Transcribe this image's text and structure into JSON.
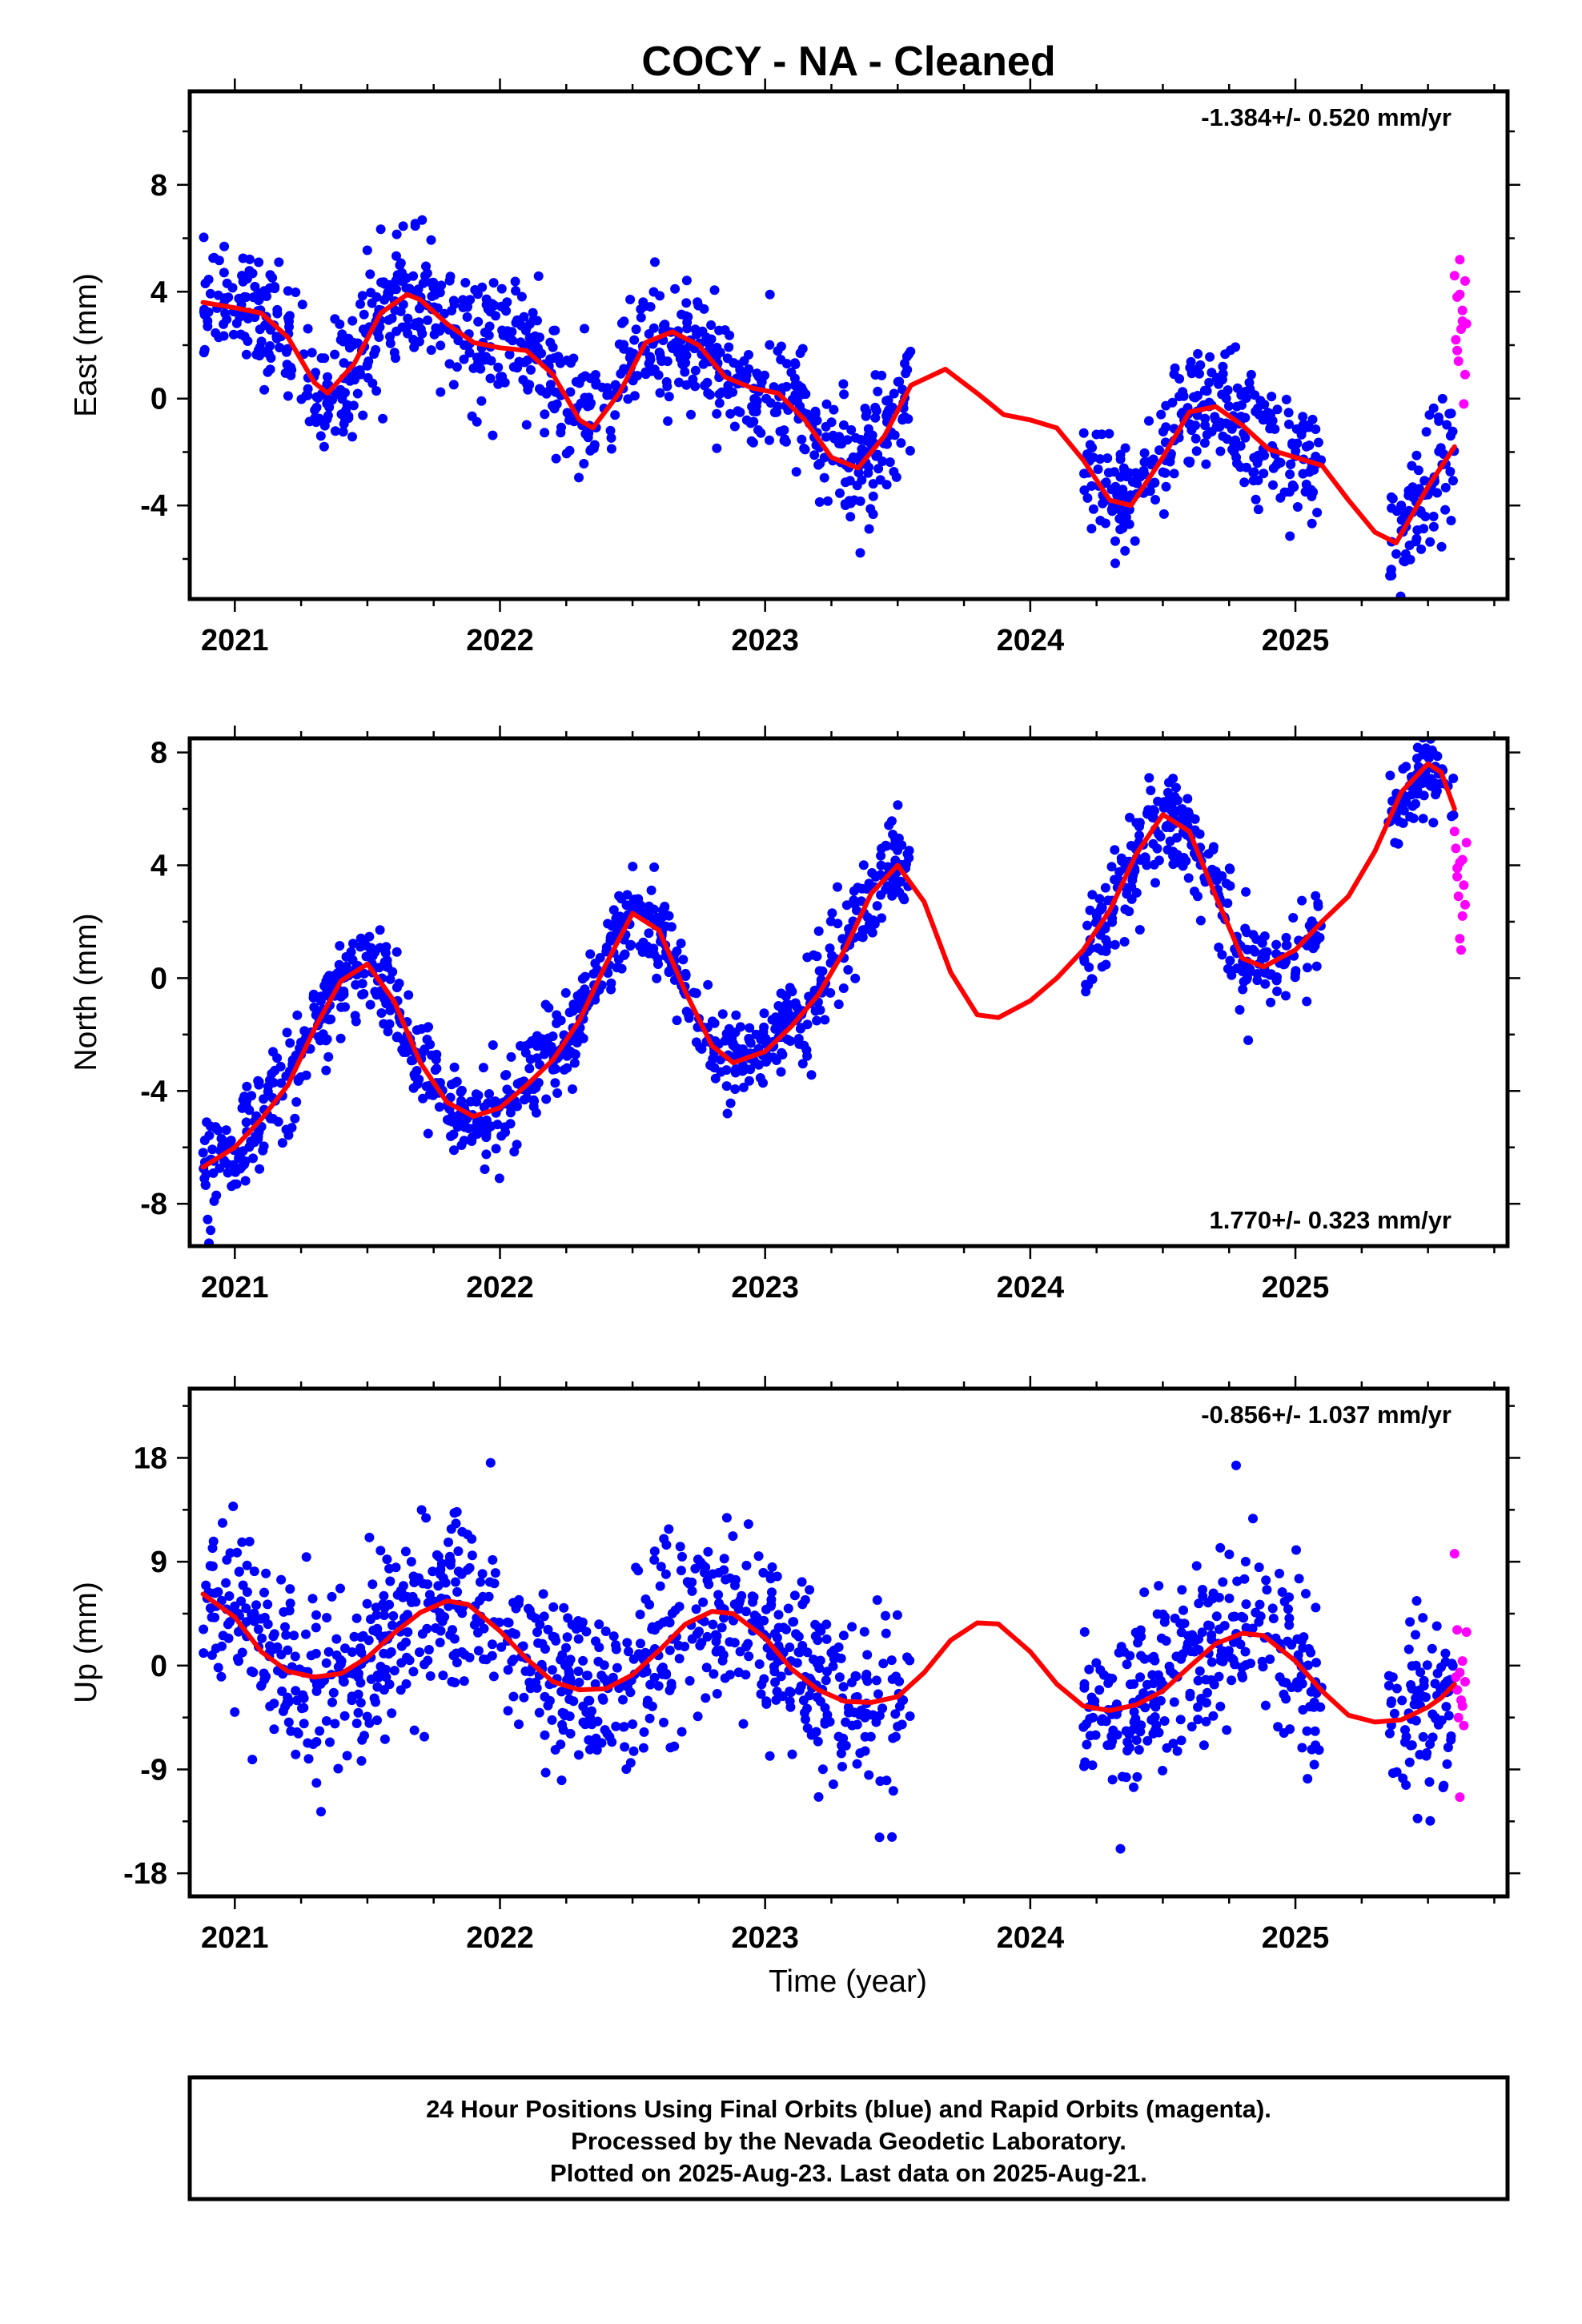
{
  "title": "COCY  - NA - Cleaned",
  "xlabel": "Time (year)",
  "footer": {
    "line1": "24 Hour Positions Using Final Orbits (blue) and Rapid Orbits (magenta).",
    "line2": "Processed by the Nevada Geodetic Laboratory.",
    "line3": "Plotted on 2025-Aug-23. Last data on 2025-Aug-21."
  },
  "colors": {
    "final": "#0000ff",
    "rapid": "#ff00ff",
    "fit": "#ff0000"
  },
  "chart_data": [
    {
      "type": "scatter",
      "name": "east",
      "ylabel": "East (mm)",
      "rate_text": "-1.384+/- 0.520 mm/yr",
      "xlim": [
        2020.83,
        2025.8
      ],
      "ylim": [
        -7.5,
        11.5
      ],
      "xticks": [
        2021,
        2022,
        2023,
        2024,
        2025
      ],
      "yticks": [
        -4,
        0,
        4,
        8
      ],
      "grid": false,
      "fit": {
        "x": [
          2020.88,
          2021.0,
          2021.1,
          2021.2,
          2021.3,
          2021.35,
          2021.45,
          2021.55,
          2021.65,
          2021.7,
          2021.8,
          2021.9,
          2022.0,
          2022.1,
          2022.2,
          2022.3,
          2022.35,
          2022.45,
          2022.55,
          2022.65,
          2022.75,
          2022.85,
          2022.95,
          2023.05,
          2023.15,
          2023.25,
          2023.35,
          2023.45,
          2023.55,
          2023.68,
          2023.8,
          2023.9,
          2024.0,
          2024.1,
          2024.2,
          2024.3,
          2024.38,
          2024.5,
          2024.6,
          2024.7,
          2024.8,
          2024.9,
          2025.0,
          2025.1,
          2025.2,
          2025.3,
          2025.38,
          2025.5,
          2025.6
        ],
        "y": [
          3.6,
          3.4,
          3.2,
          2.3,
          0.6,
          0.2,
          1.3,
          3.2,
          3.9,
          3.7,
          2.8,
          2.1,
          1.9,
          1.8,
          0.9,
          -0.8,
          -1.1,
          0.2,
          2.1,
          2.5,
          2.0,
          0.8,
          0.4,
          0.2,
          -0.8,
          -2.2,
          -2.6,
          -1.4,
          0.5,
          1.1,
          0.2,
          -0.6,
          -0.8,
          -1.1,
          -2.3,
          -3.8,
          -4.0,
          -2.2,
          -0.5,
          -0.3,
          -1.0,
          -1.9,
          -2.2,
          -2.5,
          -3.8,
          -5.0,
          -5.4,
          -3.3,
          -1.8
        ]
      },
      "final_segments": [
        [
          2020.88,
          2021.55
        ],
        [
          2021.55,
          2022.25
        ],
        [
          2022.25,
          2022.9
        ],
        [
          2022.9,
          2023.55
        ],
        [
          2024.2,
          2025.1
        ],
        [
          2025.35,
          2025.6
        ]
      ],
      "final_scatter_sd": 1.15,
      "rapid_points": {
        "x": [
          2025.6,
          2025.605,
          2025.61,
          2025.615,
          2025.62,
          2025.625,
          2025.63,
          2025.635,
          2025.64,
          2025.645,
          2025.61,
          2025.62,
          2025.63,
          2025.64
        ],
        "y": [
          4.6,
          2.2,
          3.8,
          1.4,
          5.2,
          2.6,
          3.3,
          -0.2,
          4.4,
          2.8,
          1.8,
          3.9,
          2.9,
          0.9
        ]
      }
    },
    {
      "type": "scatter",
      "name": "north",
      "ylabel": "North (mm)",
      "rate_text": "1.770+/- 0.323 mm/yr",
      "xlim": [
        2020.83,
        2025.8
      ],
      "ylim": [
        -9.5,
        8.5
      ],
      "xticks": [
        2021,
        2022,
        2023,
        2024,
        2025
      ],
      "yticks": [
        -8,
        -4,
        0,
        4,
        8
      ],
      "grid": false,
      "fit": {
        "x": [
          2020.88,
          2021.0,
          2021.1,
          2021.2,
          2021.3,
          2021.4,
          2021.5,
          2021.6,
          2021.7,
          2021.8,
          2021.9,
          2022.0,
          2022.1,
          2022.2,
          2022.3,
          2022.4,
          2022.5,
          2022.6,
          2022.7,
          2022.8,
          2022.88,
          2023.0,
          2023.1,
          2023.2,
          2023.3,
          2023.4,
          2023.5,
          2023.6,
          2023.7,
          2023.8,
          2023.88,
          2024.0,
          2024.1,
          2024.2,
          2024.3,
          2024.4,
          2024.5,
          2024.6,
          2024.7,
          2024.8,
          2024.88,
          2025.0,
          2025.1,
          2025.2,
          2025.3,
          2025.4,
          2025.5,
          2025.55,
          2025.6
        ],
        "y": [
          -6.7,
          -6.0,
          -5.0,
          -3.8,
          -1.8,
          -0.1,
          0.5,
          -0.8,
          -3.0,
          -4.4,
          -4.9,
          -4.6,
          -3.8,
          -2.9,
          -1.5,
          0.5,
          2.3,
          1.7,
          -0.5,
          -2.4,
          -3.0,
          -2.6,
          -1.7,
          -0.6,
          1.0,
          3.0,
          4.0,
          2.7,
          0.2,
          -1.3,
          -1.4,
          -0.8,
          0.0,
          1.0,
          2.4,
          4.4,
          5.8,
          5.2,
          2.9,
          0.7,
          0.4,
          1.0,
          2.0,
          2.9,
          4.5,
          6.6,
          7.6,
          7.3,
          6.0
        ]
      },
      "final_segments": [
        [
          2020.88,
          2021.55
        ],
        [
          2021.55,
          2022.25
        ],
        [
          2022.25,
          2022.9
        ],
        [
          2022.9,
          2023.55
        ],
        [
          2024.2,
          2025.1
        ],
        [
          2025.35,
          2025.6
        ]
      ],
      "final_scatter_sd": 0.85,
      "rapid_points": {
        "x": [
          2025.6,
          2025.605,
          2025.61,
          2025.615,
          2025.62,
          2025.625,
          2025.63,
          2025.635,
          2025.64,
          2025.645,
          2025.61,
          2025.62,
          2025.63
        ],
        "y": [
          5.2,
          4.6,
          3.6,
          2.9,
          1.4,
          1.0,
          4.2,
          3.3,
          2.6,
          4.8,
          3.9,
          4.1,
          2.2
        ]
      }
    },
    {
      "type": "scatter",
      "name": "up",
      "ylabel": "Up (mm)",
      "rate_text": "-0.856+/- 1.037 mm/yr",
      "xlim": [
        2020.83,
        2025.8
      ],
      "ylim": [
        -20,
        24
      ],
      "xticks": [
        2021,
        2022,
        2023,
        2024,
        2025
      ],
      "yticks": [
        -18,
        -9,
        0,
        9,
        18
      ],
      "grid": false,
      "fit": {
        "x": [
          2020.88,
          2021.0,
          2021.1,
          2021.2,
          2021.3,
          2021.4,
          2021.5,
          2021.6,
          2021.7,
          2021.8,
          2021.88,
          2022.0,
          2022.1,
          2022.2,
          2022.3,
          2022.4,
          2022.5,
          2022.6,
          2022.7,
          2022.8,
          2022.88,
          2023.0,
          2023.1,
          2023.2,
          2023.3,
          2023.4,
          2023.5,
          2023.6,
          2023.7,
          2023.8,
          2023.88,
          2024.0,
          2024.1,
          2024.2,
          2024.3,
          2024.4,
          2024.5,
          2024.6,
          2024.7,
          2024.8,
          2024.88,
          2025.0,
          2025.1,
          2025.2,
          2025.3,
          2025.4,
          2025.5,
          2025.55,
          2025.6
        ],
        "y": [
          6.2,
          4.2,
          1.2,
          -0.5,
          -1.0,
          -0.7,
          0.7,
          2.8,
          4.6,
          5.6,
          5.3,
          3.0,
          0.6,
          -1.4,
          -2.1,
          -2.0,
          -0.8,
          1.3,
          3.6,
          4.7,
          4.5,
          2.4,
          -0.3,
          -2.1,
          -3.1,
          -3.2,
          -2.7,
          -0.6,
          2.2,
          3.7,
          3.6,
          1.2,
          -1.6,
          -3.5,
          -3.9,
          -3.4,
          -2.2,
          -0.1,
          1.9,
          2.8,
          2.6,
          0.4,
          -2.2,
          -4.3,
          -4.9,
          -4.7,
          -3.6,
          -2.8,
          -1.6
        ]
      },
      "final_segments": [
        [
          2020.88,
          2021.55
        ],
        [
          2021.55,
          2022.25
        ],
        [
          2022.25,
          2022.9
        ],
        [
          2022.9,
          2023.55
        ],
        [
          2024.2,
          2025.1
        ],
        [
          2025.35,
          2025.6
        ]
      ],
      "final_scatter_sd": 3.9,
      "rapid_points": {
        "x": [
          2025.6,
          2025.605,
          2025.61,
          2025.615,
          2025.62,
          2025.625,
          2025.63,
          2025.635,
          2025.64,
          2025.645,
          2025.61,
          2025.62,
          2025.63
        ],
        "y": [
          9.7,
          -1.0,
          3.1,
          -4.5,
          -11.4,
          -3.0,
          0.4,
          -5.2,
          -1.4,
          2.9,
          -2.1,
          -0.6,
          -3.5
        ]
      }
    }
  ]
}
